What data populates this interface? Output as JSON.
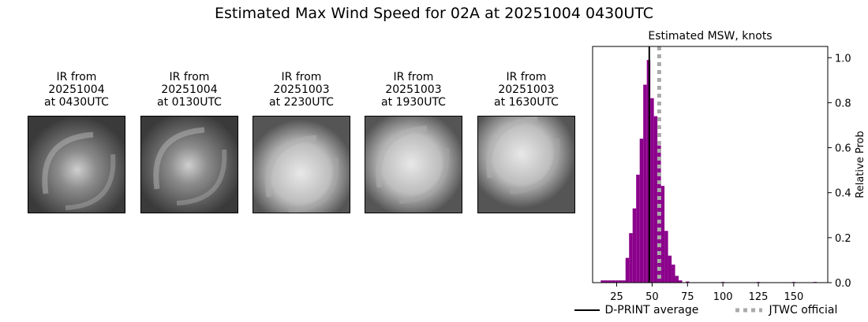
{
  "figure": {
    "title": "Estimated Max Wind Speed for 02A at 20251004 0430UTC"
  },
  "ir_panels": [
    {
      "title_line1": "IR from",
      "title_line2": "20251004",
      "title_line3": "at 0430UTC",
      "brightness": "mid"
    },
    {
      "title_line1": "IR from",
      "title_line2": "20251004",
      "title_line3": "at 0130UTC",
      "brightness": "mid"
    },
    {
      "title_line1": "IR from",
      "title_line2": "20251003",
      "title_line3": "at 2230UTC",
      "brightness": "bright"
    },
    {
      "title_line1": "IR from",
      "title_line2": "20251003",
      "title_line3": "at 1930UTC",
      "brightness": "bright"
    },
    {
      "title_line1": "IR from",
      "title_line2": "20251003",
      "title_line3": "at 1630UTC",
      "brightness": "bright"
    }
  ],
  "chart_data": {
    "type": "bar",
    "title": "Estimated MSW, knots",
    "xlabel": "",
    "ylabel": "Relative Prob",
    "xlim": [
      8,
      174
    ],
    "ylim": [
      0,
      1.05
    ],
    "x_ticks": [
      25,
      50,
      75,
      100,
      125,
      150
    ],
    "y_ticks": [
      0.0,
      0.2,
      0.4,
      0.6,
      0.8,
      1.0
    ],
    "y_tick_labels": [
      "0.0",
      "0.2",
      "0.4",
      "0.6",
      "0.8",
      "1.0"
    ],
    "y_axis_side": "right",
    "bar_color": "#8b008b",
    "bin_width": 2.5,
    "bars": [
      {
        "x": 15,
        "value": 0.01
      },
      {
        "x": 17.5,
        "value": 0.01
      },
      {
        "x": 20,
        "value": 0.01
      },
      {
        "x": 22.5,
        "value": 0.01
      },
      {
        "x": 25,
        "value": 0.01
      },
      {
        "x": 27.5,
        "value": 0.01
      },
      {
        "x": 30,
        "value": 0.01
      },
      {
        "x": 32.5,
        "value": 0.11
      },
      {
        "x": 35,
        "value": 0.22
      },
      {
        "x": 37.5,
        "value": 0.33
      },
      {
        "x": 40,
        "value": 0.48
      },
      {
        "x": 42.5,
        "value": 0.64
      },
      {
        "x": 45,
        "value": 0.88
      },
      {
        "x": 47.5,
        "value": 0.99
      },
      {
        "x": 50,
        "value": 0.82
      },
      {
        "x": 52.5,
        "value": 0.74
      },
      {
        "x": 55,
        "value": 0.61
      },
      {
        "x": 57.5,
        "value": 0.43
      },
      {
        "x": 60,
        "value": 0.23
      },
      {
        "x": 62.5,
        "value": 0.12
      },
      {
        "x": 65,
        "value": 0.08
      },
      {
        "x": 67.5,
        "value": 0.03
      },
      {
        "x": 70,
        "value": 0.01
      },
      {
        "x": 75,
        "value": 0.005
      },
      {
        "x": 100,
        "value": 0.003
      },
      {
        "x": 125,
        "value": 0.003
      },
      {
        "x": 150,
        "value": 0.003
      },
      {
        "x": 165,
        "value": 0.003
      }
    ],
    "lines": [
      {
        "name": "D-PRINT average",
        "x": 48,
        "color": "#000000",
        "style": "solid"
      },
      {
        "name": "JTWC official",
        "x": 55,
        "color": "#aaaaaa",
        "style": "dotted"
      }
    ],
    "legend_position": "bottom-right"
  }
}
